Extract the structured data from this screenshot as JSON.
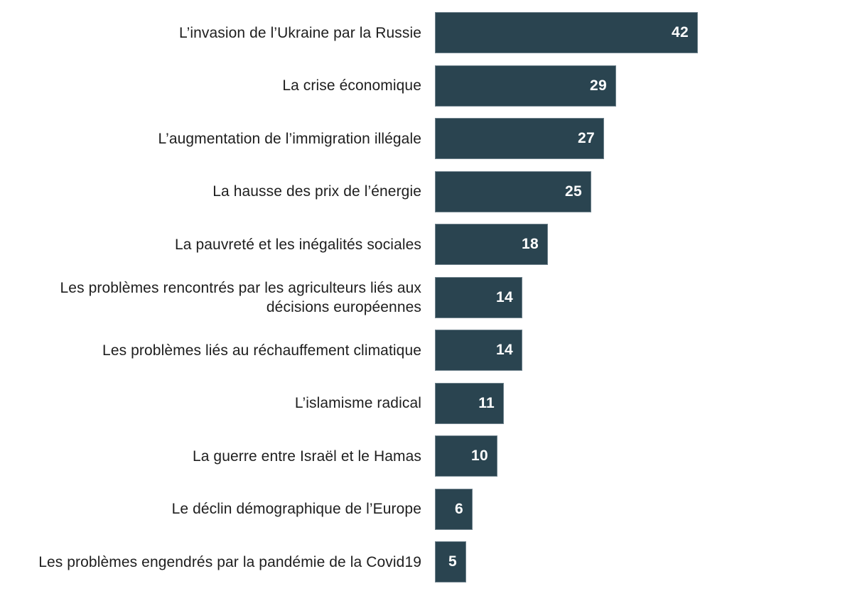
{
  "page": {
    "background_color": "#ffffff"
  },
  "chart_data": {
    "type": "bar",
    "orientation": "horizontal",
    "title": "",
    "xlabel": "",
    "ylabel": "",
    "grid": false,
    "legend": "none",
    "xlim": [
      0,
      42
    ],
    "bar_color": "#2a4450",
    "value_label_color": "#ffffff",
    "category_label_color": "#1e1e1e",
    "categories": [
      "L’invasion de l’Ukraine par la Russie",
      "La crise économique",
      "L’augmentation de l’immigration illégale",
      "La hausse des prix de l’énergie",
      "La pauvreté et les inégalités sociales",
      "Les problèmes rencontrés par les agriculteurs liés aux décisions européennes",
      "Les problèmes liés au réchauffement climatique",
      "L’islamisme radical",
      "La guerre entre Israël et le Hamas",
      "Le déclin démographique de l’Europe",
      "Les problèmes engendrés par la pandémie de la Covid19"
    ],
    "values": [
      42,
      29,
      27,
      25,
      18,
      14,
      14,
      11,
      10,
      6,
      5
    ]
  }
}
